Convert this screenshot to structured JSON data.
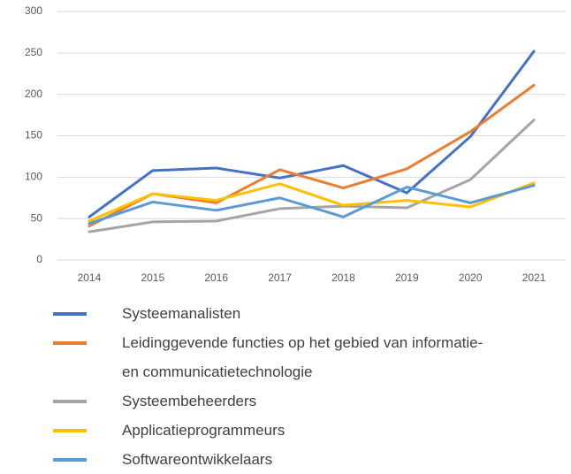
{
  "chart_data": {
    "type": "line",
    "categories": [
      "2014",
      "2015",
      "2016",
      "2017",
      "2018",
      "2019",
      "2020",
      "2021"
    ],
    "series": [
      {
        "name": "Systeemanalisten",
        "color": "#4472c4",
        "values": [
          52,
          108,
          111,
          99,
          114,
          81,
          149,
          252
        ]
      },
      {
        "name": "Leidinggevende functies op het gebied van informatie- en communicatietechnologie",
        "color": "#ed7d31",
        "values": [
          41,
          80,
          69,
          109,
          87,
          110,
          155,
          211
        ]
      },
      {
        "name": "Systeembeheerders",
        "color": "#a5a5a5",
        "values": [
          34,
          46,
          47,
          62,
          65,
          63,
          97,
          169
        ]
      },
      {
        "name": "Applicatieprogrammeurs",
        "color": "#ffc000",
        "values": [
          47,
          80,
          72,
          92,
          66,
          72,
          64,
          93
        ]
      },
      {
        "name": "Softwareontwikkelaars",
        "color": "#5b9bd5",
        "values": [
          44,
          70,
          60,
          75,
          52,
          88,
          69,
          90
        ]
      }
    ],
    "ylim": [
      0,
      300
    ],
    "yticks": [
      0,
      50,
      100,
      150,
      200,
      250,
      300
    ],
    "grid": true,
    "legend": "bottom"
  }
}
